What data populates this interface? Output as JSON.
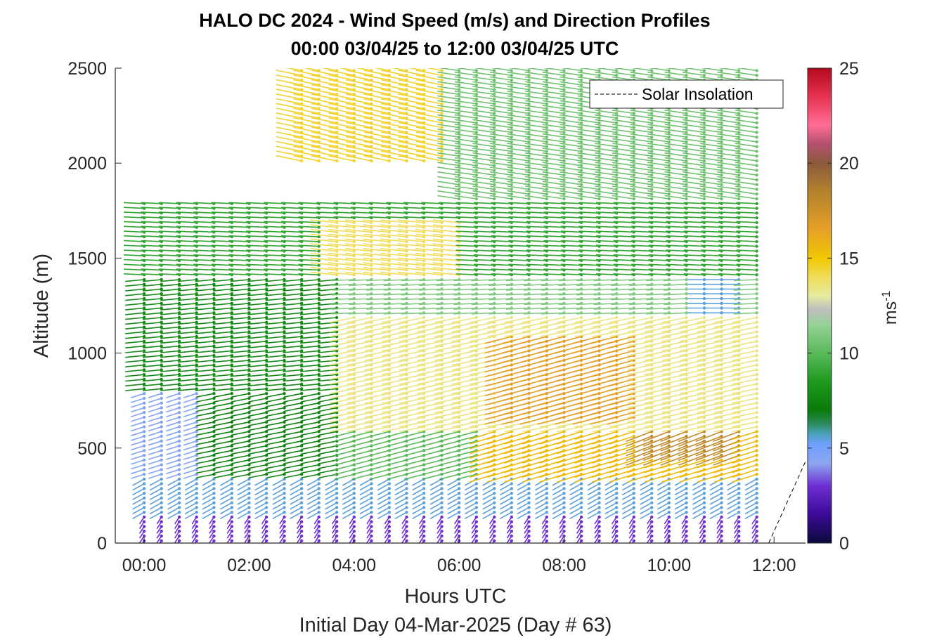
{
  "chart_data": {
    "type": "quiver",
    "title": "HALO DC 2024 - Wind Speed (m/s) and Direction Profiles",
    "subtitle": "00:00 03/04/25 to 12:00 03/04/25  UTC",
    "xlabel": "Hours UTC",
    "xlabel2": "Initial Day 04-Mar-2025 (Day # 63)",
    "ylabel": "Altitude (m)",
    "xlim": [
      -0.55,
      12.6
    ],
    "ylim": [
      0,
      2500
    ],
    "x_ticks": [
      0,
      2,
      4,
      6,
      8,
      10,
      12
    ],
    "x_tick_labels": [
      "00:00",
      "02:00",
      "04:00",
      "06:00",
      "08:00",
      "10:00",
      "12:00"
    ],
    "y_ticks": [
      0,
      500,
      1000,
      1500,
      2000,
      2500
    ],
    "y_tick_labels": [
      "0",
      "500",
      "1000",
      "1500",
      "2000",
      "2500"
    ],
    "grid": false,
    "legend": {
      "entries": [
        "Solar Insolation"
      ],
      "placement": "top-right"
    },
    "colorbar": {
      "label": "ms",
      "label_exponent": "-1",
      "range": [
        0,
        25
      ],
      "ticks": [
        0,
        5,
        10,
        15,
        20,
        25
      ],
      "tick_labels": [
        "0",
        "5",
        "10",
        "15",
        "20",
        "25"
      ],
      "stops": [
        {
          "v": 0,
          "c": "#0a0a3c"
        },
        {
          "v": 1.5,
          "c": "#3c0a96"
        },
        {
          "v": 3.0,
          "c": "#6e2fd2"
        },
        {
          "v": 4.2,
          "c": "#8ca6f0"
        },
        {
          "v": 5.2,
          "c": "#6fa0ff"
        },
        {
          "v": 5.8,
          "c": "#46a0b4"
        },
        {
          "v": 6.3,
          "c": "#2c8a5a"
        },
        {
          "v": 7.0,
          "c": "#0a7a0a"
        },
        {
          "v": 8.5,
          "c": "#1e9a1e"
        },
        {
          "v": 10.0,
          "c": "#5aba5a"
        },
        {
          "v": 11.5,
          "c": "#96d296"
        },
        {
          "v": 12.3,
          "c": "#bebebe"
        },
        {
          "v": 13.0,
          "c": "#e6eba0"
        },
        {
          "v": 14.0,
          "c": "#f0dc5a"
        },
        {
          "v": 15.0,
          "c": "#f0c800"
        },
        {
          "v": 16.5,
          "c": "#e6a028"
        },
        {
          "v": 18.5,
          "c": "#b4822c"
        },
        {
          "v": 20.0,
          "c": "#8c5a3c"
        },
        {
          "v": 21.0,
          "c": "#b4506e"
        },
        {
          "v": 22.0,
          "c": "#ff6e96"
        },
        {
          "v": 23.5,
          "c": "#e63250"
        },
        {
          "v": 25.0,
          "c": "#b40a1e"
        }
      ]
    },
    "solar_insolation": {
      "x": [
        -0.55,
        11.9,
        12.6
      ],
      "y": [
        0,
        0,
        430
      ]
    },
    "profile_times_hours": [
      0.0,
      0.33,
      0.67,
      1.0,
      1.33,
      1.67,
      2.0,
      2.33,
      2.67,
      3.0,
      3.33,
      3.67,
      4.0,
      4.33,
      4.67,
      5.0,
      5.33,
      5.67,
      6.0,
      6.33,
      6.67,
      7.0,
      7.33,
      7.67,
      8.0,
      8.33,
      8.67,
      9.0,
      9.33,
      9.67,
      10.0,
      10.33,
      10.67,
      11.0,
      11.33,
      11.67
    ],
    "barb_spacing_m": 25,
    "speed_regions": [
      {
        "t": [
          0.0,
          12.0
        ],
        "z": [
          0,
          150
        ],
        "speed": 3.0,
        "dir_deg": 200
      },
      {
        "t": [
          0.0,
          12.0
        ],
        "z": [
          150,
          350
        ],
        "speed": 5.5,
        "dir_deg": 225
      },
      {
        "t": [
          0.0,
          1.2
        ],
        "z": [
          350,
          800
        ],
        "speed": 4.5,
        "dir_deg": 240
      },
      {
        "t": [
          1.2,
          4.0
        ],
        "z": [
          350,
          800
        ],
        "speed": 7.5,
        "dir_deg": 250
      },
      {
        "t": [
          4.0,
          12.0
        ],
        "z": [
          350,
          600
        ],
        "speed": 10.0,
        "dir_deg": 245
      },
      {
        "t": [
          6.5,
          12.0
        ],
        "z": [
          350,
          650
        ],
        "speed": 15.5,
        "dir_deg": 240
      },
      {
        "t": [
          9.5,
          11.5
        ],
        "z": [
          450,
          750
        ],
        "speed": 18.0,
        "dir_deg": 235
      },
      {
        "t": [
          0.0,
          4.0
        ],
        "z": [
          800,
          1400
        ],
        "speed": 7.8,
        "dir_deg": 260
      },
      {
        "t": [
          4.0,
          12.0
        ],
        "z": [
          600,
          1200
        ],
        "speed": 13.5,
        "dir_deg": 250
      },
      {
        "t": [
          7.0,
          9.5
        ],
        "z": [
          650,
          1100
        ],
        "speed": 16.5,
        "dir_deg": 245
      },
      {
        "t": [
          4.0,
          12.0
        ],
        "z": [
          1200,
          1400
        ],
        "speed": 11.0,
        "dir_deg": 265
      },
      {
        "t": [
          10.5,
          11.5
        ],
        "z": [
          1200,
          1400
        ],
        "speed": 5.5,
        "dir_deg": 270
      },
      {
        "t": [
          0.0,
          12.0
        ],
        "z": [
          1400,
          1800
        ],
        "speed": 9.0,
        "dir_deg": 275
      },
      {
        "t": [
          3.5,
          6.0
        ],
        "z": [
          1400,
          1700
        ],
        "speed": 14.0,
        "dir_deg": 280
      },
      {
        "t": [
          2.7,
          6.0
        ],
        "z": [
          2000,
          2500
        ],
        "speed": 14.5,
        "dir_deg": 290
      },
      {
        "t": [
          6.0,
          12.0
        ],
        "z": [
          1800,
          2500
        ],
        "speed": 10.5,
        "dir_deg": 285
      }
    ]
  }
}
